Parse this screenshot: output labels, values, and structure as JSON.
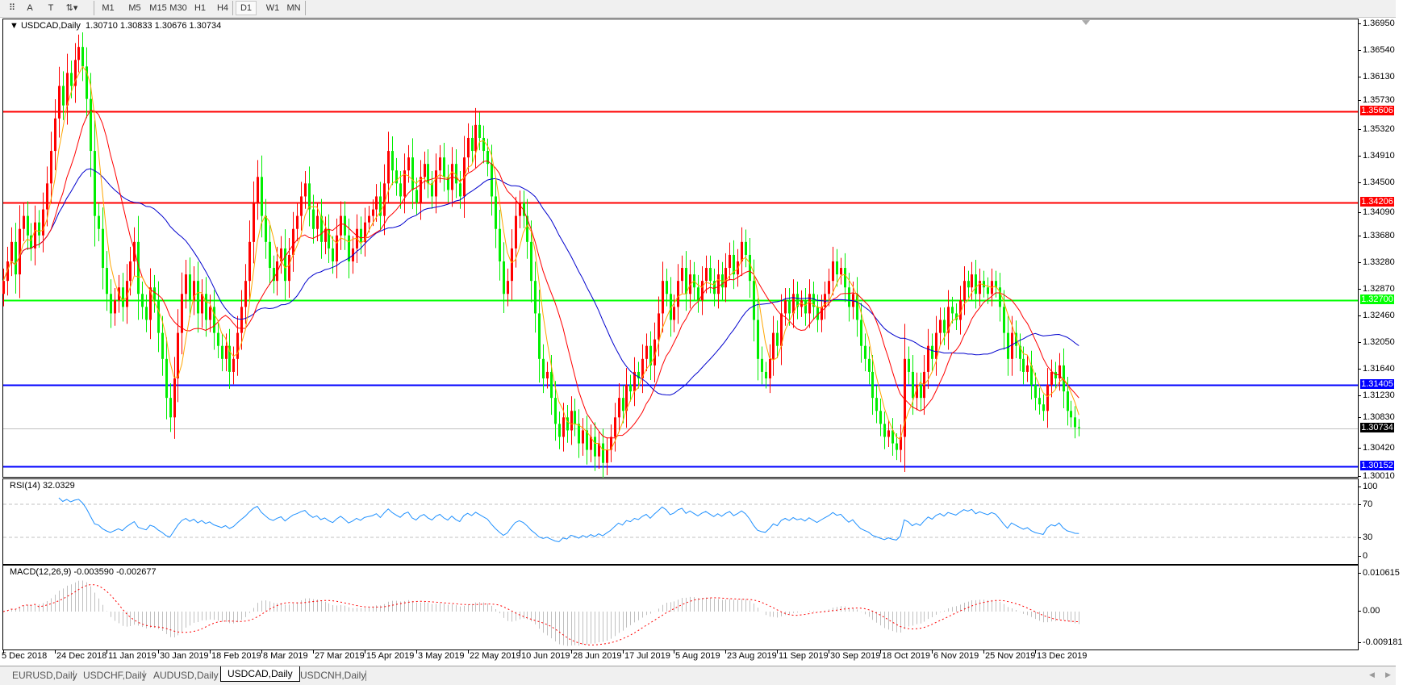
{
  "toolbar": {
    "tools": [
      {
        "name": "grid-f-icon",
        "glyph": "⠿"
      },
      {
        "name": "text-icon",
        "glyph": "A"
      },
      {
        "name": "text-label-icon",
        "glyph": "T"
      },
      {
        "name": "arrows-icon",
        "glyph": "⇅▾"
      }
    ],
    "timeframes": [
      "M1",
      "M5",
      "M15",
      "M30",
      "H1",
      "H4",
      "D1",
      "W1",
      "MN"
    ],
    "active_timeframe": "D1"
  },
  "chart": {
    "title": "USDCAD,Daily",
    "ohlc": "1.30710 1.30833 1.30676 1.30734",
    "colors": {
      "bull": "#ff0000",
      "bear": "#00ee00",
      "ma_fast": "#ffa500",
      "ma_mid": "#ff0000",
      "ma_slow": "#0000cd",
      "rsi": "#1e90ff",
      "macd_hist": "#c0c0c0",
      "macd_signal": "#ff0000"
    },
    "price_ticks": [
      "1.36950",
      "1.36540",
      "1.36130",
      "1.35730",
      "1.35320",
      "1.34910",
      "1.34500",
      "1.34090",
      "1.33680",
      "1.33280",
      "1.32870",
      "1.32460",
      "1.32050",
      "1.31640",
      "1.31230",
      "1.30830",
      "1.30420",
      "1.30010"
    ],
    "hlines": [
      {
        "price": "1.35606",
        "color": "#ff0000",
        "text_color": "#ffffff"
      },
      {
        "price": "1.34206",
        "color": "#ff0000",
        "text_color": "#ffffff"
      },
      {
        "price": "1.32700",
        "color": "#00ff00",
        "text_color": "#ffffff"
      },
      {
        "price": "1.31405",
        "color": "#0000ff",
        "text_color": "#ffffff"
      },
      {
        "price": "1.30734",
        "color": "#000000",
        "line_color": "#c0c0c0",
        "text_color": "#ffffff"
      },
      {
        "price": "1.30152",
        "color": "#0000ff",
        "text_color": "#ffffff"
      }
    ],
    "date_labels": [
      "5 Dec 2018",
      "24 Dec 2018",
      "11 Jan 2019",
      "30 Jan 2019",
      "18 Feb 2019",
      "8 Mar 2019",
      "27 Mar 2019",
      "15 Apr 2019",
      "3 May 2019",
      "22 May 2019",
      "10 Jun 2019",
      "28 Jun 2019",
      "17 Jul 2019",
      "5 Aug 2019",
      "23 Aug 2019",
      "11 Sep 2019",
      "30 Sep 2019",
      "18 Oct 2019",
      "6 Nov 2019",
      "25 Nov 2019",
      "13 Dec 2019"
    ]
  },
  "rsi": {
    "label": "RSI(14) 32.0329",
    "ticks": [
      "100",
      "70",
      "30",
      "0"
    ],
    "levels": [
      70,
      30
    ]
  },
  "macd": {
    "label": "MACD(12,26,9) -0.003590 -0.002677",
    "ticks": [
      "0.010615",
      "0.00",
      "-0.009181"
    ],
    "range": [
      -0.009181,
      0.010615
    ]
  },
  "tabs": [
    "EURUSD,Daily",
    "USDCHF,Daily",
    "AUDUSD,Daily",
    "USDCAD,Daily",
    "USDCNH,Daily"
  ],
  "active_tab": "USDCAD,Daily",
  "chart_data": {
    "type": "candlestick",
    "symbol": "USDCAD",
    "timeframe": "Daily",
    "ylim": [
      1.3001,
      1.3695
    ],
    "closes": [
      1.33,
      1.333,
      1.336,
      1.331,
      1.338,
      1.34,
      1.337,
      1.335,
      1.339,
      1.337,
      1.341,
      1.345,
      1.35,
      1.355,
      1.36,
      1.357,
      1.362,
      1.36,
      1.364,
      1.366,
      1.363,
      1.358,
      1.35,
      1.34,
      1.338,
      1.332,
      1.328,
      1.325,
      1.327,
      1.329,
      1.326,
      1.33,
      1.333,
      1.336,
      1.328,
      1.326,
      1.324,
      1.329,
      1.327,
      1.322,
      1.318,
      1.312,
      1.309,
      1.315,
      1.322,
      1.328,
      1.331,
      1.327,
      1.33,
      1.325,
      1.328,
      1.324,
      1.326,
      1.322,
      1.32,
      1.318,
      1.32,
      1.316,
      1.318,
      1.322,
      1.326,
      1.33,
      1.336,
      1.342,
      1.346,
      1.34,
      1.336,
      1.332,
      1.33,
      1.333,
      1.335,
      1.33,
      1.334,
      1.338,
      1.34,
      1.343,
      1.345,
      1.341,
      1.338,
      1.34,
      1.336,
      1.338,
      1.335,
      1.333,
      1.337,
      1.34,
      1.337,
      1.333,
      1.335,
      1.338,
      1.336,
      1.339,
      1.34,
      1.341,
      1.343,
      1.34,
      1.345,
      1.35,
      1.347,
      1.345,
      1.343,
      1.347,
      1.349,
      1.344,
      1.342,
      1.346,
      1.348,
      1.345,
      1.343,
      1.347,
      1.349,
      1.346,
      1.344,
      1.348,
      1.345,
      1.343,
      1.349,
      1.352,
      1.35,
      1.354,
      1.352,
      1.35,
      1.348,
      1.343,
      1.338,
      1.333,
      1.328,
      1.33,
      1.335,
      1.34,
      1.342,
      1.34,
      1.336,
      1.33,
      1.325,
      1.318,
      1.315,
      1.316,
      1.312,
      1.308,
      1.306,
      1.309,
      1.307,
      1.31,
      1.308,
      1.305,
      1.307,
      1.304,
      1.306,
      1.303,
      1.305,
      1.302,
      1.304,
      1.306,
      1.309,
      1.312,
      1.31,
      1.314,
      1.313,
      1.316,
      1.315,
      1.318,
      1.32,
      1.317,
      1.321,
      1.325,
      1.33,
      1.328,
      1.324,
      1.326,
      1.33,
      1.332,
      1.328,
      1.331,
      1.329,
      1.327,
      1.33,
      1.332,
      1.33,
      1.328,
      1.331,
      1.329,
      1.332,
      1.334,
      1.331,
      1.333,
      1.336,
      1.334,
      1.33,
      1.324,
      1.318,
      1.316,
      1.315,
      1.318,
      1.322,
      1.32,
      1.325,
      1.327,
      1.325,
      1.328,
      1.326,
      1.327,
      1.325,
      1.328,
      1.326,
      1.324,
      1.326,
      1.328,
      1.33,
      1.333,
      1.331,
      1.332,
      1.329,
      1.326,
      1.328,
      1.324,
      1.32,
      1.318,
      1.316,
      1.312,
      1.31,
      1.308,
      1.306,
      1.307,
      1.305,
      1.304,
      1.306,
      1.318,
      1.316,
      1.312,
      1.314,
      1.312,
      1.316,
      1.32,
      1.318,
      1.322,
      1.324,
      1.322,
      1.326,
      1.325,
      1.324,
      1.327,
      1.33,
      1.329,
      1.331,
      1.328,
      1.33,
      1.329,
      1.328,
      1.33,
      1.329,
      1.326,
      1.322,
      1.318,
      1.322,
      1.32,
      1.318,
      1.316,
      1.317,
      1.314,
      1.312,
      1.311,
      1.31,
      1.314,
      1.316,
      1.315,
      1.317,
      1.313,
      1.31,
      1.309,
      1.3075,
      1.30734
    ],
    "moving_averages": [
      {
        "period": 5
      },
      {
        "period": 13
      },
      {
        "period": 34
      }
    ],
    "indicators": [
      "RSI(14)",
      "MACD(12,26,9)"
    ]
  }
}
